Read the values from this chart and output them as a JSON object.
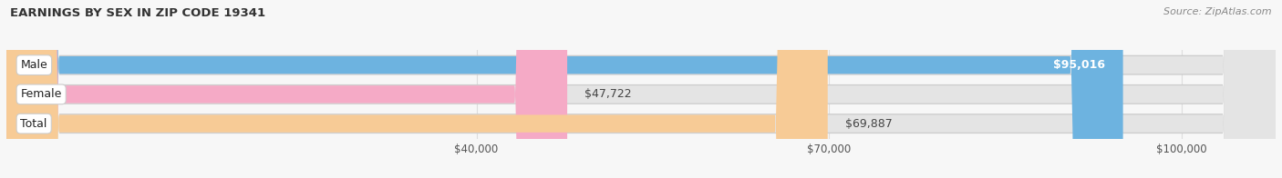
{
  "title": "EARNINGS BY SEX IN ZIP CODE 19341",
  "source": "Source: ZipAtlas.com",
  "categories": [
    "Male",
    "Female",
    "Total"
  ],
  "values": [
    95016,
    47722,
    69887
  ],
  "bar_colors": [
    "#6db3e0",
    "#f5aac6",
    "#f7cb96"
  ],
  "bar_bg_color": "#e4e4e4",
  "bar_bg_border": "#d0d0d0",
  "value_labels": [
    "$95,016",
    "$47,722",
    "$69,887"
  ],
  "tick_labels": [
    "$40,000",
    "$70,000",
    "$100,000"
  ],
  "tick_values": [
    40000,
    70000,
    100000
  ],
  "xmin": 0,
  "xmax": 108000,
  "figsize": [
    14.06,
    1.96
  ],
  "dpi": 100,
  "background_color": "#f7f7f7"
}
